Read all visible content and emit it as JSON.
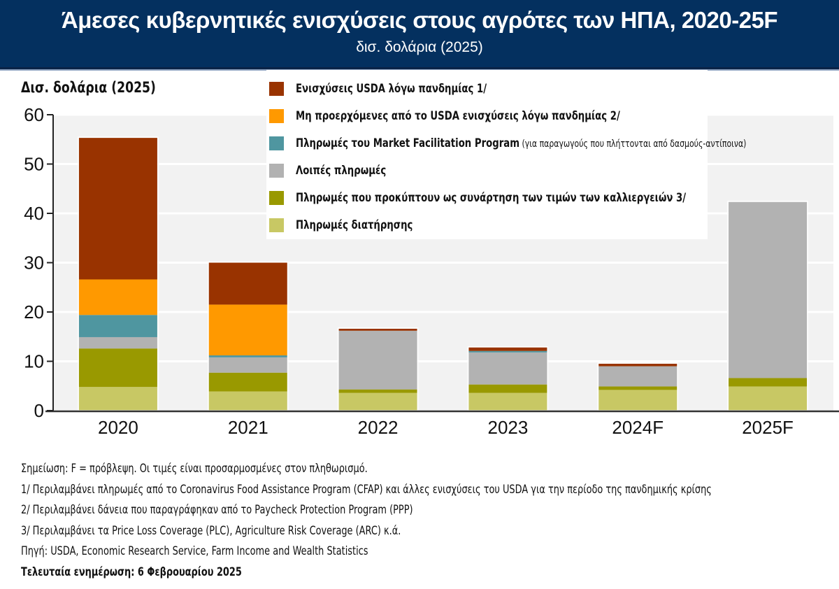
{
  "header": {
    "title": "Άμεσες κυβερνητικές ενισχύσεις στους αγρότες των ΗΠΑ, 2020-25F",
    "subtitle": "δισ. δολάρια (2025)"
  },
  "chart_data": {
    "type": "bar",
    "stacked": true,
    "title": "Άμεσες κυβερνητικές ενισχύσεις στους αγρότες των ΗΠΑ, 2020-25F",
    "ylabel": "Δισ. δολάρια (2025)",
    "xlabel": "",
    "ylim": [
      0,
      60
    ],
    "yticks": [
      "0",
      "10",
      "20",
      "30",
      "40",
      "50",
      "60"
    ],
    "ytick_values": [
      0,
      10,
      20,
      30,
      40,
      50,
      60
    ],
    "grid": true,
    "legend_position": "top",
    "categories": [
      "2020",
      "2021",
      "2022",
      "2023",
      "2024F",
      "2025F"
    ],
    "series": [
      {
        "name": "Πληρωμές διατήρησης",
        "color": "#c8c864",
        "values": [
          4.8,
          3.9,
          3.6,
          3.6,
          4.2,
          4.9
        ]
      },
      {
        "name": "Πληρωμές που προκύπτουν ως συνάρτηση των τιμών των καλλιεργειών 3/",
        "color": "#999900",
        "values": [
          7.8,
          3.8,
          0.7,
          1.7,
          0.7,
          1.7
        ]
      },
      {
        "name": "Λοιπές πληρωμές",
        "color": "#b2b2b2",
        "values": [
          2.3,
          3.1,
          11.9,
          6.5,
          4.1,
          35.7
        ]
      },
      {
        "name": "Πληρωμές του Market Facilitation Program",
        "note": "(για παραγωγούς που πλήττονται από δασμούς-αντίποινα)",
        "color": "#4f96a0",
        "values": [
          4.5,
          0.4,
          0.0,
          0.3,
          0.0,
          0.0
        ]
      },
      {
        "name": "Μη προερχόμενες από το USDA ενισχύσεις λόγω πανδημίας 2/",
        "color": "#ff9900",
        "values": [
          7.2,
          10.3,
          0.0,
          0.0,
          0.0,
          0.0
        ]
      },
      {
        "name": "Ενισχύσεις USDA λόγω πανδημίας 1/",
        "color": "#993300",
        "values": [
          28.7,
          8.5,
          0.4,
          0.7,
          0.5,
          0.0
        ]
      }
    ],
    "legend_order": [
      5,
      4,
      3,
      2,
      1,
      0
    ]
  },
  "notes": [
    "Σημείωση: F = πρόβλεψη. Οι τιμές είναι προσαρμοσμένες στον πληθωρισμό.",
    "1/ Περιλαμβάνει πληρωμές από το Coronavirus Food Assistance Program (CFAP) και άλλες ενισχύσεις του USDA για την περίοδο της πανδημικής κρίσης",
    "2/ Περιλαμβάνει δάνεια που παραγράφηκαν από το Paycheck Protection Program (PPP)",
    "3/ Περιλαμβάνει τα Price Loss Coverage (PLC), Agriculture Risk Coverage (ARC) κ.ά.",
    "Πηγή: USDA, Economic Research Service, Farm Income and Wealth Statistics"
  ],
  "last_update": "Τελευταία ενημέρωση: 6 Φεβρουαρίου 2025",
  "colors": {
    "header_bg": "#04305f",
    "plot_bg": "#f2f2f2"
  }
}
